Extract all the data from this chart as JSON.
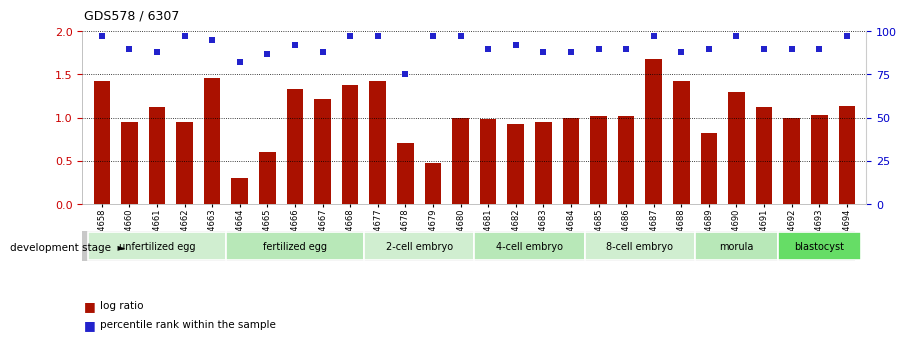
{
  "title": "GDS578 / 6307",
  "samples": [
    "GSM14658",
    "GSM14660",
    "GSM14661",
    "GSM14662",
    "GSM14663",
    "GSM14664",
    "GSM14665",
    "GSM14666",
    "GSM14667",
    "GSM14668",
    "GSM14677",
    "GSM14678",
    "GSM14679",
    "GSM14680",
    "GSM14681",
    "GSM14682",
    "GSM14683",
    "GSM14684",
    "GSM14685",
    "GSM14686",
    "GSM14687",
    "GSM14688",
    "GSM14689",
    "GSM14690",
    "GSM14691",
    "GSM14692",
    "GSM14693",
    "GSM14694"
  ],
  "log_ratio": [
    1.42,
    0.95,
    1.12,
    0.95,
    1.46,
    0.3,
    0.6,
    1.33,
    1.22,
    1.38,
    1.42,
    0.7,
    0.47,
    1.0,
    0.98,
    0.93,
    0.95,
    1.0,
    1.02,
    1.02,
    1.68,
    1.42,
    0.82,
    1.3,
    1.12,
    1.0,
    1.03,
    1.13
  ],
  "percentile_rank": [
    97,
    90,
    88,
    97,
    95,
    82,
    87,
    92,
    88,
    97,
    97,
    75,
    97,
    97,
    90,
    92,
    88,
    88,
    90,
    90,
    97,
    88,
    90,
    97,
    90,
    90,
    90,
    97
  ],
  "stages": [
    {
      "label": "unfertilized egg",
      "start": 0,
      "end": 5,
      "color": "#d0eed0"
    },
    {
      "label": "fertilized egg",
      "start": 5,
      "end": 10,
      "color": "#b8e8b8"
    },
    {
      "label": "2-cell embryo",
      "start": 10,
      "end": 14,
      "color": "#d0eed0"
    },
    {
      "label": "4-cell embryo",
      "start": 14,
      "end": 18,
      "color": "#b8e8b8"
    },
    {
      "label": "8-cell embryo",
      "start": 18,
      "end": 22,
      "color": "#d0eed0"
    },
    {
      "label": "morula",
      "start": 22,
      "end": 25,
      "color": "#b8e8b8"
    },
    {
      "label": "blastocyst",
      "start": 25,
      "end": 28,
      "color": "#66dd66"
    }
  ],
  "bar_color": "#aa1100",
  "dot_color": "#2222cc",
  "ylim_left": [
    0,
    2.0
  ],
  "ylim_right": [
    0,
    100
  ],
  "yticks_left": [
    0,
    0.5,
    1.0,
    1.5,
    2.0
  ],
  "yticks_right": [
    0,
    25,
    50,
    75,
    100
  ],
  "dev_stage_label": "development stage",
  "legend_bar": "log ratio",
  "legend_dot": "percentile rank within the sample",
  "background_color": "#ffffff",
  "stage_bar_bg": "#c8c8c8"
}
